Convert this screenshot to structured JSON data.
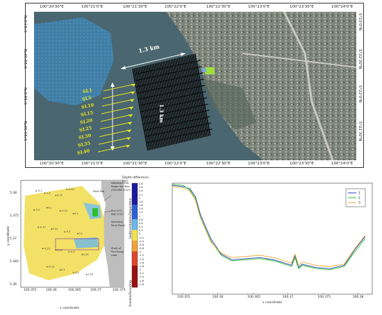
{
  "top_map": {
    "top_ticks": [
      "100°20'30\"E",
      "100°21'0\"E",
      "100°21'30\"E",
      "100°22'0\"E",
      "100°22'30\"E",
      "100°23'0\"E",
      "100°23'30\"E",
      "100°24'0\"E"
    ],
    "bottom_ticks": [
      "100°20'30\"E",
      "100°21'0\"E",
      "100°21'30\"E",
      "100°22'0\"E",
      "100°22'30\"E",
      "100°23'0\"E",
      "100°23'30\"E",
      "100°24'0\"E"
    ],
    "left_ticks": [
      "5°23'0\"N",
      "5°22'30\"N",
      "5°22'0\"N",
      "5°21'30\"N"
    ],
    "right_ticks": [
      "5°23'0\"N",
      "5°22'30\"N",
      "5°22'0\"N",
      "5°21'30\"N"
    ],
    "scale_horizontal": "1.3 km",
    "scale_vertical": "1.3 km",
    "survey_lines": [
      "SL1",
      "SL5",
      "SL10",
      "SL15",
      "SL20",
      "SL25",
      "SL30",
      "SL35",
      "SL40"
    ],
    "colors": {
      "water": "#3e5f6a",
      "survey": "#111111",
      "label": "#e8e81a",
      "land": "#8a8f86",
      "arrow": "#ffffff"
    }
  },
  "bottom_left": {
    "y_ticks": [
      "5.38",
      "5.375",
      "5.37",
      "5.365",
      "5.36"
    ],
    "x_ticks": [
      "100.355",
      "100.36",
      "100.365",
      "100.37",
      "100.375"
    ],
    "ylabel": "y coordinate",
    "xlabel": "x coordinate",
    "colorbar_title": "Depth difference (m)",
    "colorbar_ticks": [
      "2.8",
      "2.6",
      "2.4",
      "2.2",
      "2",
      "1.8",
      "1.6",
      "1.4",
      "1.2",
      "1",
      "0.8",
      "0.6",
      "0.4",
      "0.2",
      "0",
      "-0.2",
      "-0.4",
      "-0.6",
      "-0.8",
      "-1",
      "-1.2",
      "-1.4",
      "-1.6",
      "-1.8",
      "-2",
      "-2.2",
      "-2.4",
      "-2.6",
      "-2.8"
    ],
    "colorbar_upper_label": "Sedimentation/Deposition",
    "colorbar_lower_label": "Erosion/Scouring",
    "annotations": [
      "Mahkota's Prai Power Sta. Bhd (350 MW CCGT)",
      "Prai 1071 MW CCGT",
      "Seberang Perai Power",
      "Point Prai",
      "Strait of Port Klang Lead"
    ],
    "points": [
      {
        "x": 100.357,
        "y": 5.3792,
        "v": "-0.1"
      },
      {
        "x": 100.359,
        "y": 5.3787,
        "v": "-0.2"
      },
      {
        "x": 100.3615,
        "y": 5.3782,
        "v": "0.14"
      },
      {
        "x": 100.364,
        "y": 5.3795,
        "v": "-0.05"
      },
      {
        "x": 100.3565,
        "y": 5.375,
        "v": "-0.2"
      },
      {
        "x": 100.3595,
        "y": 5.3755,
        "v": "0.1"
      },
      {
        "x": 100.3625,
        "y": 5.3748,
        "v": "-0.12"
      },
      {
        "x": 100.3655,
        "y": 5.3742,
        "v": "0.2"
      },
      {
        "x": 100.3575,
        "y": 5.3712,
        "v": "-0.17"
      },
      {
        "x": 100.3605,
        "y": 5.3708,
        "v": "0.11"
      },
      {
        "x": 100.3635,
        "y": 5.3702,
        "v": "-0.3"
      },
      {
        "x": 100.3665,
        "y": 5.3698,
        "v": "0.1"
      },
      {
        "x": 100.3585,
        "y": 5.3665,
        "v": "-0.21"
      },
      {
        "x": 100.3615,
        "y": 5.3662,
        "v": "0.19"
      },
      {
        "x": 100.3645,
        "y": 5.3658,
        "v": "-0.2"
      },
      {
        "x": 100.3675,
        "y": 5.3652,
        "v": "0.15"
      },
      {
        "x": 100.3595,
        "y": 5.3625,
        "v": "-0.12"
      },
      {
        "x": 100.3625,
        "y": 5.3618,
        "v": "0.1"
      },
      {
        "x": 100.3655,
        "y": 5.3612,
        "v": "-0.1"
      },
      {
        "x": 100.3685,
        "y": 5.3608,
        "v": "0.18"
      }
    ]
  },
  "chart_data": {
    "type": "line",
    "x_ticks": [
      "100.355",
      "100.36",
      "100.365",
      "100.37",
      "100.375",
      "100.38"
    ],
    "x_tick_values": [
      100.355,
      100.36,
      100.365,
      100.37,
      100.375,
      100.38
    ],
    "xlabel": "x coordinate",
    "xlim": [
      100.3535,
      100.382
    ],
    "ylim": [
      0,
      1
    ],
    "legend": {
      "placement": "top-right",
      "entries": [
        "1",
        "2",
        "3"
      ]
    },
    "series": [
      {
        "name": "1",
        "color": "#1f3fbf",
        "x": [
          100.3535,
          100.355,
          100.356,
          100.3568,
          100.3575,
          100.359,
          100.3605,
          100.362,
          100.364,
          100.366,
          100.368,
          100.3695,
          100.3705,
          100.371,
          100.3715,
          100.372,
          100.374,
          100.376,
          100.378,
          100.3795,
          100.381
        ],
        "y": [
          0.98,
          0.97,
          0.95,
          0.88,
          0.72,
          0.5,
          0.36,
          0.31,
          0.32,
          0.33,
          0.31,
          0.28,
          0.26,
          0.35,
          0.24,
          0.27,
          0.24,
          0.23,
          0.26,
          0.4,
          0.52
        ]
      },
      {
        "name": "2",
        "color": "#2ec12e",
        "x": [
          100.3535,
          100.355,
          100.356,
          100.3568,
          100.3575,
          100.359,
          100.3605,
          100.362,
          100.364,
          100.366,
          100.368,
          100.3695,
          100.3705,
          100.371,
          100.3715,
          100.372,
          100.374,
          100.376,
          100.378,
          100.3795,
          100.381
        ],
        "y": [
          0.99,
          0.98,
          0.94,
          0.86,
          0.7,
          0.48,
          0.35,
          0.3,
          0.31,
          0.32,
          0.3,
          0.27,
          0.25,
          0.33,
          0.23,
          0.26,
          0.23,
          0.22,
          0.25,
          0.38,
          0.5
        ]
      },
      {
        "name": "3",
        "color": "#f0a82a",
        "x": [
          100.3535,
          100.355,
          100.356,
          100.3568,
          100.3575,
          100.359,
          100.3605,
          100.362,
          100.364,
          100.366,
          100.368,
          100.3695,
          100.3705,
          100.371,
          100.3715,
          100.372,
          100.374,
          100.376,
          100.378,
          100.3795,
          100.381
        ],
        "y": [
          0.97,
          0.96,
          0.93,
          0.85,
          0.69,
          0.47,
          0.37,
          0.33,
          0.34,
          0.35,
          0.33,
          0.3,
          0.28,
          0.36,
          0.26,
          0.29,
          0.26,
          0.25,
          0.27,
          0.41,
          0.53
        ]
      }
    ]
  }
}
